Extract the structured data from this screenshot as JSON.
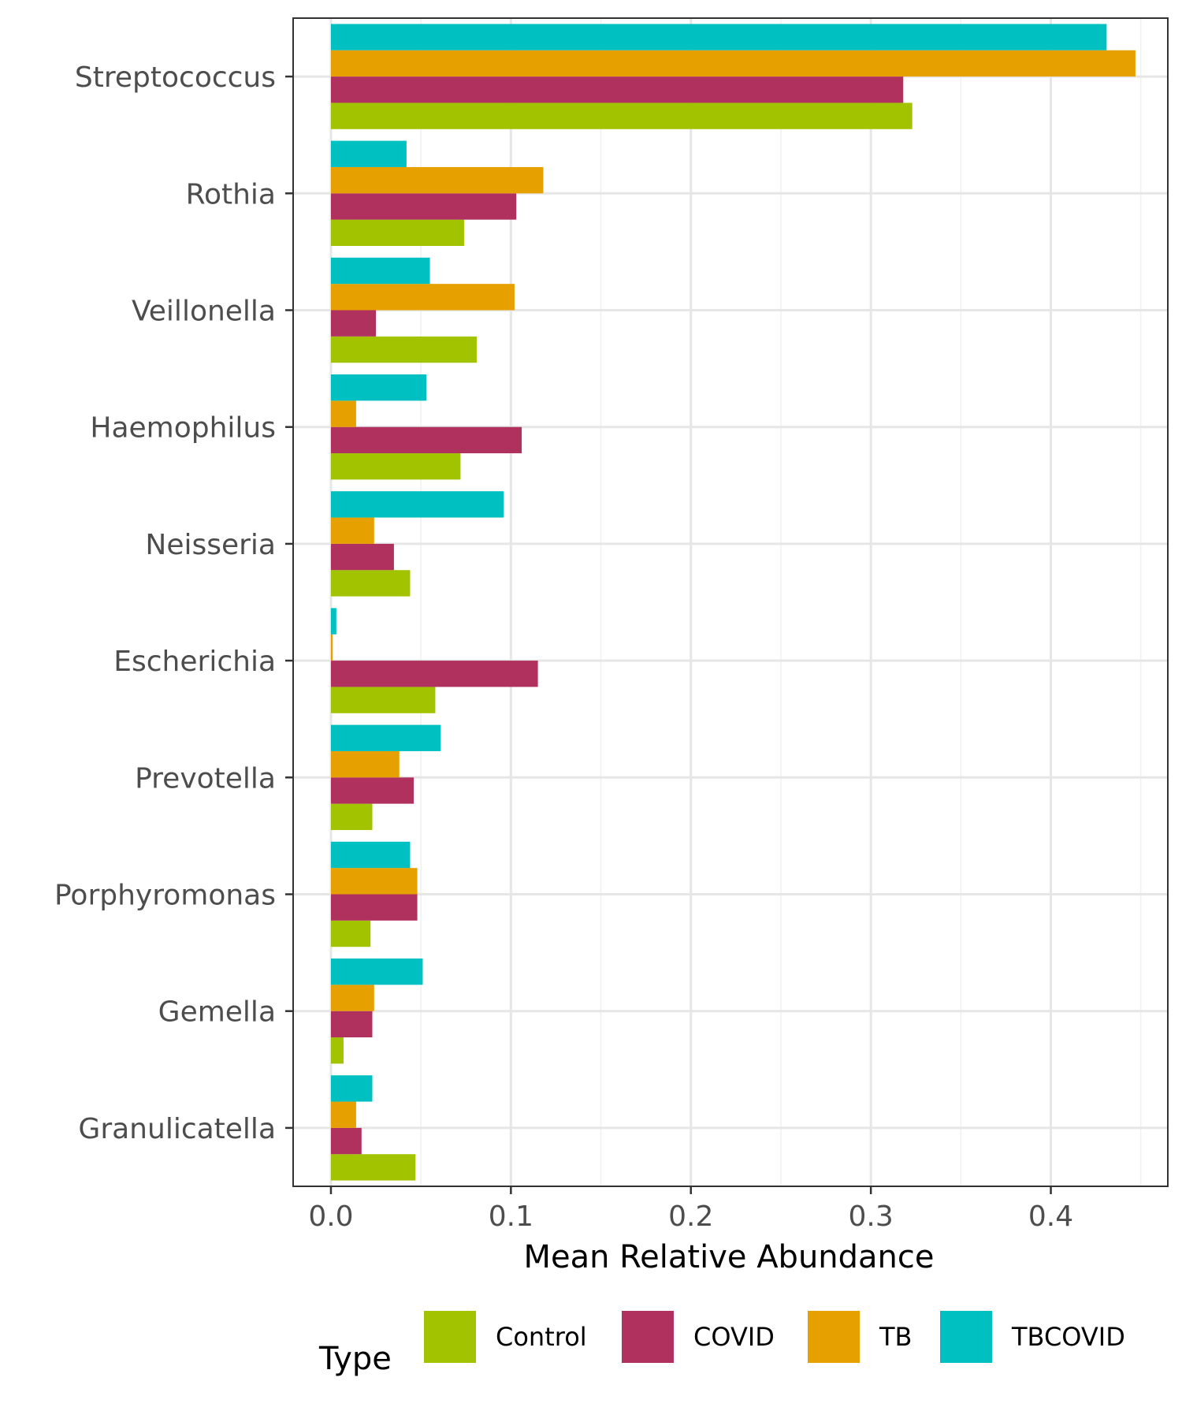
{
  "chart_data": {
    "type": "bar",
    "orientation": "horizontal",
    "title": "",
    "xlabel": "Mean Relative Abundance",
    "ylabel": "",
    "xlim": [
      -0.021,
      0.465
    ],
    "x_ticks": [
      0.0,
      0.1,
      0.2,
      0.3,
      0.4
    ],
    "x_tick_labels": [
      "0.0",
      "0.1",
      "0.2",
      "0.3",
      "0.4"
    ],
    "grid": true,
    "categories": [
      "Streptococcus",
      "Rothia",
      "Veillonella",
      "Haemophilus",
      "Neisseria",
      "Escherichia",
      "Prevotella",
      "Porphyromonas",
      "Gemella",
      "Granulicatella"
    ],
    "series": [
      {
        "name": "Control",
        "color": "#a2c400",
        "values": [
          0.323,
          0.074,
          0.081,
          0.072,
          0.044,
          0.058,
          0.023,
          0.022,
          0.007,
          0.047
        ]
      },
      {
        "name": "COVID",
        "color": "#b0305e",
        "values": [
          0.318,
          0.103,
          0.025,
          0.106,
          0.035,
          0.115,
          0.046,
          0.048,
          0.023,
          0.017
        ]
      },
      {
        "name": "TB",
        "color": "#e6a000",
        "values": [
          0.447,
          0.118,
          0.102,
          0.014,
          0.024,
          0.001,
          0.038,
          0.048,
          0.024,
          0.014
        ]
      },
      {
        "name": "TBCOVID",
        "color": "#00c0c2",
        "values": [
          0.431,
          0.042,
          0.055,
          0.053,
          0.096,
          0.003,
          0.061,
          0.044,
          0.051,
          0.023
        ]
      }
    ],
    "legend": {
      "title": "Type",
      "position": "bottom"
    }
  }
}
